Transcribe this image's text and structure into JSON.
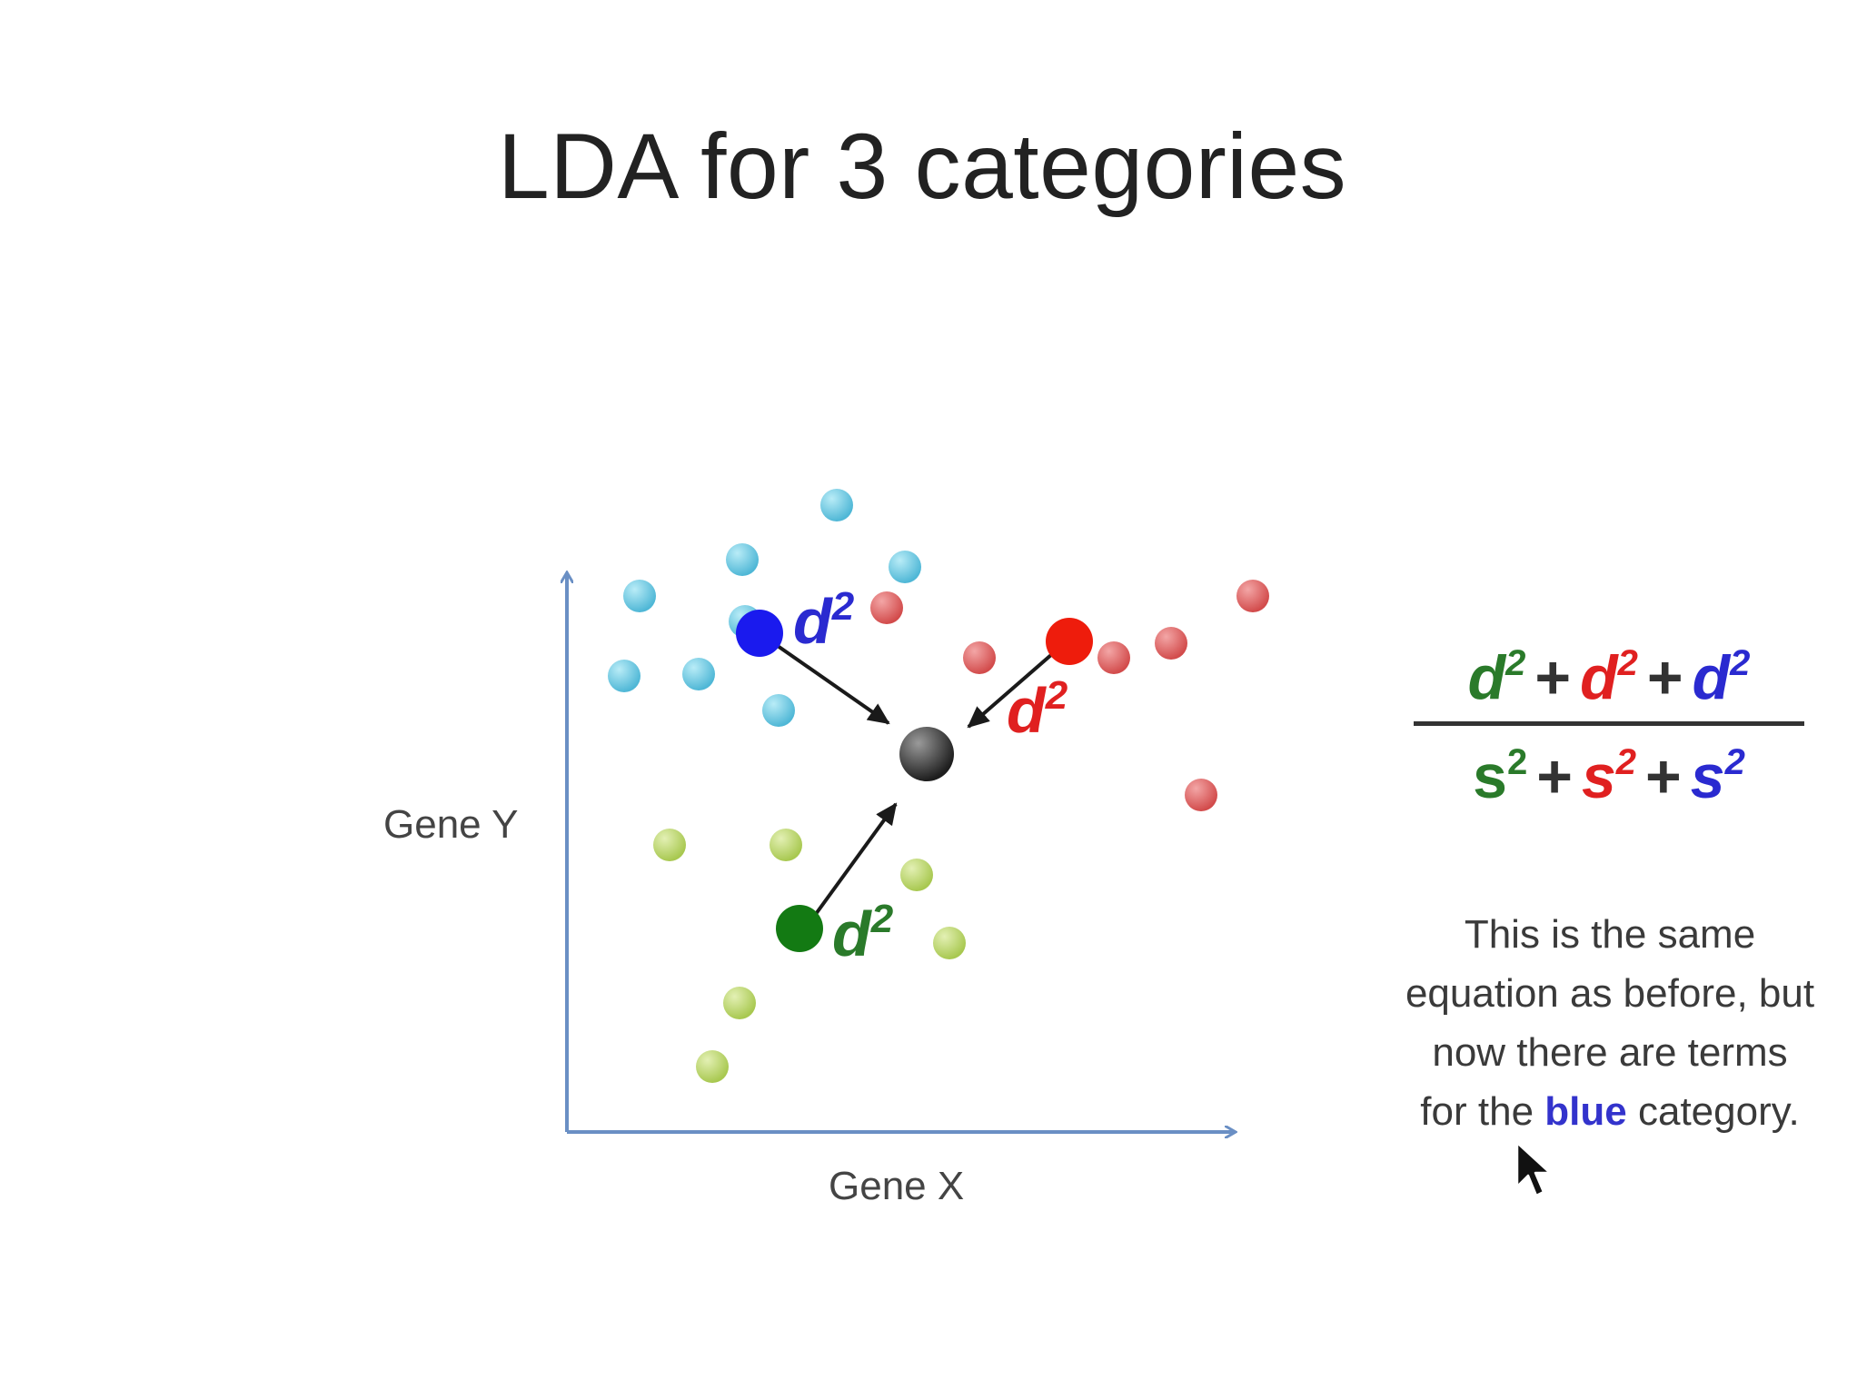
{
  "title": "LDA for 3 categories",
  "axes": {
    "x_label": "Gene X",
    "y_label": "Gene Y"
  },
  "distance_label": {
    "base": "d",
    "superscript": "2"
  },
  "scatter_label": "s",
  "colors": {
    "axis": "#6a8fc4",
    "blue_points": "#63c6e0",
    "blue_centroid": "#1a1aee",
    "red_points": "#e06666",
    "red_centroid": "#ee1c0c",
    "green_points": "#bcd86a",
    "green_centroid": "#137a13",
    "overall_centroid": "#333333",
    "d2_blue": "#2a2ad0",
    "d2_red": "#e02020",
    "d2_green": "#2a7a2a",
    "highlight": "#3333cc"
  },
  "formula": {
    "numerator": [
      {
        "text": "d",
        "sup": "2",
        "color": "#2a7a2a"
      },
      {
        "text": "+",
        "op": true
      },
      {
        "text": "d",
        "sup": "2",
        "color": "#e02020"
      },
      {
        "text": "+",
        "op": true
      },
      {
        "text": "d",
        "sup": "2",
        "color": "#2a2ad0"
      }
    ],
    "denominator": [
      {
        "text": "s",
        "sup": "2",
        "color": "#2a7a2a"
      },
      {
        "text": "+",
        "op": true
      },
      {
        "text": "s",
        "sup": "2",
        "color": "#e02020"
      },
      {
        "text": "+",
        "op": true
      },
      {
        "text": "s",
        "sup": "2",
        "color": "#2a2ad0"
      }
    ]
  },
  "note": {
    "line1": "This is the same",
    "line2": "equation as before, but",
    "line3": "now there are terms",
    "line4_pre": "for the",
    "line4_highlight": "blue",
    "line4_post": "category."
  },
  "cursor_icon": "arrow-cursor-icon"
}
